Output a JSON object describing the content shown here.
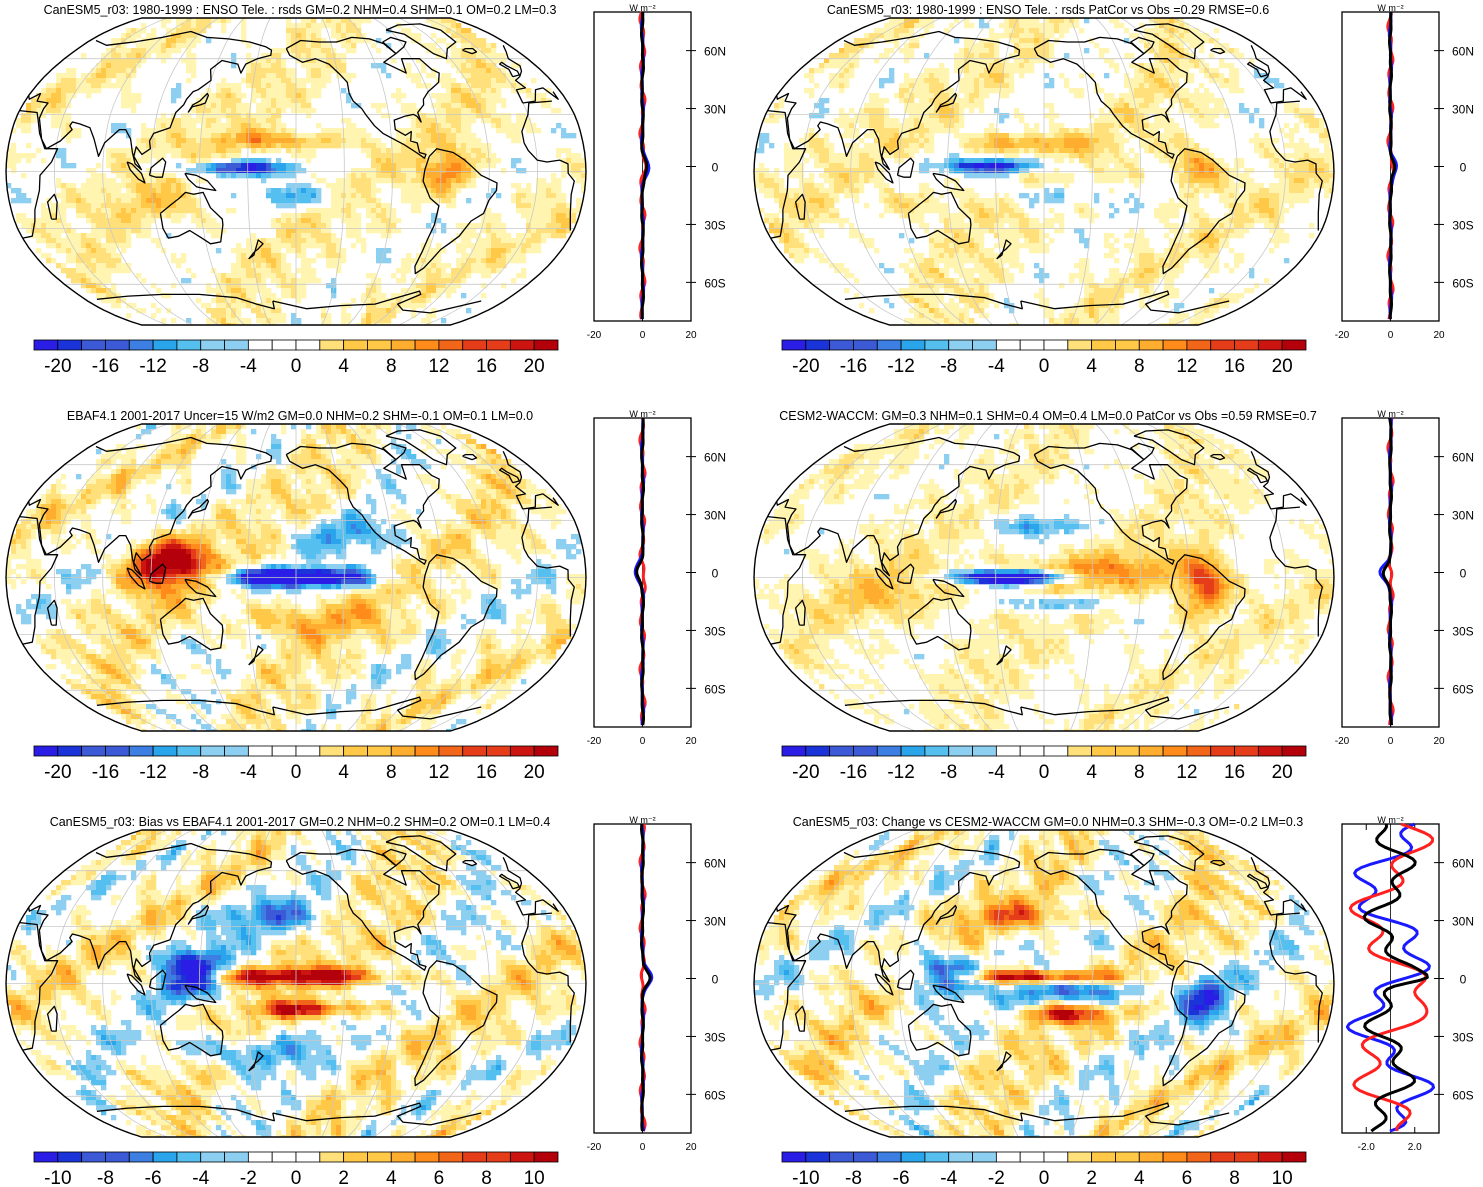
{
  "colors": {
    "palette": [
      "#2a1ee6",
      "#1a34d9",
      "#3c5ad6",
      "#3c7ee2",
      "#2aa4ea",
      "#55bff0",
      "#8ccff0",
      "#ffffff",
      "#ffffff",
      "#fff5b0",
      "#ffe07a",
      "#ffc947",
      "#ffad2e",
      "#ff8c1a",
      "#f2661a",
      "#e53d1a",
      "#cc1410",
      "#b3000b"
    ],
    "land_outline": "#000000",
    "graticule": "#c8c8c8",
    "profile_model": "#ff2020",
    "profile_obs": "#1a1aff",
    "profile_diff": "#000000"
  },
  "chart_data": [
    {
      "type": "heatmap",
      "title": "CanESM5_r03: 1980-1999 : ENSO Tele. : rsds GM=0.2 NHM=0.4 SHM=0.1 OM=0.2 LM=0.3",
      "projection": "robinson",
      "colorbar": {
        "ticks": [
          "-20",
          "-16",
          "-12",
          "-8",
          "-4",
          "0",
          "4",
          "8",
          "12",
          "16",
          "20"
        ],
        "range": [
          -22,
          22
        ],
        "n_colors": 22
      },
      "profile": {
        "unit": "W m-2",
        "xticks": [
          "-20",
          "0",
          "20"
        ],
        "xlim": [
          -20,
          20
        ],
        "yticks": [
          "60N",
          "30N",
          "0",
          "30S",
          "60S"
        ],
        "ylim": [
          -80,
          80
        ]
      }
    },
    {
      "type": "heatmap",
      "title": "CanESM5_r03: 1980-1999 : ENSO Tele. : rsds PatCor vs Obs =0.29 RMSE=0.6",
      "projection": "robinson",
      "colorbar": {
        "ticks": [
          "-20",
          "-16",
          "-12",
          "-8",
          "-4",
          "0",
          "4",
          "8",
          "12",
          "16",
          "20"
        ],
        "range": [
          -22,
          22
        ],
        "n_colors": 22
      },
      "profile": {
        "unit": "W m-2",
        "xticks": [
          "-20",
          "0",
          "20"
        ],
        "xlim": [
          -20,
          20
        ],
        "yticks": [
          "60N",
          "30N",
          "0",
          "30S",
          "60S"
        ],
        "ylim": [
          -80,
          80
        ]
      }
    },
    {
      "type": "heatmap",
      "title": "EBAF4.1 2001-2017 Uncer=15 W/m2 GM=0.0 NHM=0.2 SHM=-0.1 OM=0.1 LM=0.0",
      "projection": "robinson",
      "colorbar": {
        "ticks": [
          "-20",
          "-16",
          "-12",
          "-8",
          "-4",
          "0",
          "4",
          "8",
          "12",
          "16",
          "20"
        ],
        "range": [
          -22,
          22
        ],
        "n_colors": 22
      },
      "profile": {
        "unit": "W m-2",
        "xticks": [
          "-20",
          "0",
          "20"
        ],
        "xlim": [
          -20,
          20
        ],
        "yticks": [
          "60N",
          "30N",
          "0",
          "30S",
          "60S"
        ],
        "ylim": [
          -80,
          80
        ]
      }
    },
    {
      "type": "heatmap",
      "title": "CESM2-WACCM: GM=0.3 NHM=0.1 SHM=0.4 OM=0.4 LM=0.0 PatCor vs Obs =0.59 RMSE=0.7",
      "projection": "robinson",
      "colorbar": {
        "ticks": [
          "-20",
          "-16",
          "-12",
          "-8",
          "-4",
          "0",
          "4",
          "8",
          "12",
          "16",
          "20"
        ],
        "range": [
          -22,
          22
        ],
        "n_colors": 22
      },
      "profile": {
        "unit": "W m-2",
        "xticks": [
          "-20",
          "0",
          "20"
        ],
        "xlim": [
          -20,
          20
        ],
        "yticks": [
          "60N",
          "30N",
          "0",
          "30S",
          "60S"
        ],
        "ylim": [
          -80,
          80
        ]
      }
    },
    {
      "type": "heatmap",
      "title": "CanESM5_r03: Bias vs EBAF4.1 2001-2017 GM=0.2 NHM=0.2 SHM=0.2 OM=0.1 LM=0.4",
      "projection": "robinson",
      "colorbar": {
        "ticks": [
          "-10",
          "-8",
          "-6",
          "-4",
          "-2",
          "0",
          "2",
          "4",
          "6",
          "8",
          "10"
        ],
        "range": [
          -11,
          11
        ],
        "n_colors": 22
      },
      "profile": {
        "unit": "W m-2",
        "xticks": [
          "-20",
          "0",
          "20"
        ],
        "xlim": [
          -20,
          20
        ],
        "yticks": [
          "60N",
          "30N",
          "0",
          "30S",
          "60S"
        ],
        "ylim": [
          -80,
          80
        ]
      }
    },
    {
      "type": "heatmap",
      "title": "CanESM5_r03: Change vs CESM2-WACCM GM=0.0 NHM=0.3 SHM=-0.3 OM=-0.2 LM=0.3",
      "projection": "robinson",
      "colorbar": {
        "ticks": [
          "-10",
          "-8",
          "-6",
          "-4",
          "-2",
          "0",
          "2",
          "4",
          "6",
          "8",
          "10"
        ],
        "range": [
          -11,
          11
        ],
        "n_colors": 22
      },
      "profile": {
        "unit": "W m-2",
        "xticks": [
          "-2.0",
          "2.0"
        ],
        "xlim": [
          -4,
          4
        ],
        "yticks": [
          "60N",
          "30N",
          "0",
          "30S",
          "60S"
        ],
        "ylim": [
          -80,
          80
        ]
      }
    }
  ]
}
